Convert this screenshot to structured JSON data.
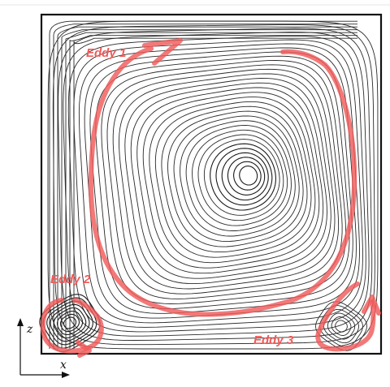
{
  "labels": {
    "eddy1": "Eddy 1",
    "eddy2": "Eddy 2",
    "eddy3": "Eddy 3"
  },
  "axes": {
    "x": "x",
    "z": "z"
  },
  "colors": {
    "annotation": "#f05a5a",
    "streamline": "#1a1a1a",
    "frame": "#111111"
  }
}
